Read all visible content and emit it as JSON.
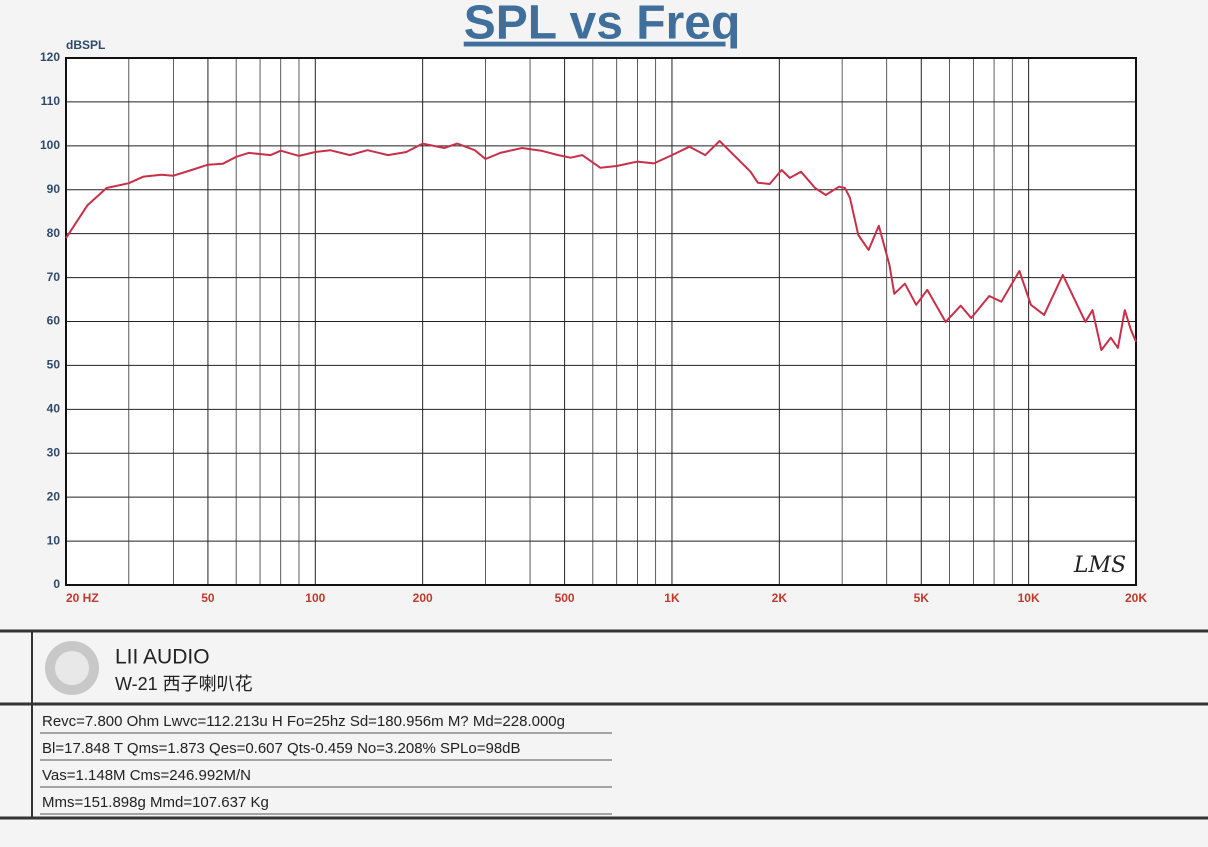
{
  "chart_data": {
    "type": "line",
    "title": "SPL vs Freq",
    "ylabel": "dBSPL",
    "annotation": "LMS",
    "xscale": "log",
    "grid": true,
    "xlim": [
      20,
      20000
    ],
    "ylim": [
      0,
      120
    ],
    "yticks": [
      0,
      10,
      20,
      30,
      40,
      50,
      60,
      70,
      80,
      90,
      100,
      110,
      120
    ],
    "xticks": [
      {
        "value": 20,
        "label": "20 HZ"
      },
      50,
      100,
      200,
      500,
      {
        "value": 1000,
        "label": "1K"
      },
      {
        "value": 2000,
        "label": "2K"
      },
      {
        "value": 5000,
        "label": "5K"
      },
      {
        "value": 10000,
        "label": "10K"
      },
      {
        "value": 20000,
        "label": "20K"
      }
    ],
    "xminorticks": [
      30,
      40,
      60,
      70,
      80,
      90,
      300,
      400,
      600,
      700,
      800,
      900,
      3000,
      4000,
      6000,
      7000,
      8000,
      9000
    ],
    "series": [
      {
        "color": "#c8304a",
        "x": [
          20,
          23,
          26,
          30,
          33,
          37,
          40,
          45,
          50,
          55,
          60,
          65,
          75,
          80,
          90,
          100,
          110,
          125,
          140,
          160,
          180,
          200,
          230,
          250,
          280,
          300,
          330,
          380,
          430,
          480,
          520,
          560,
          630,
          700,
          800,
          890,
          1000,
          1120,
          1240,
          1360,
          1660,
          1740,
          1880,
          2030,
          2140,
          2300,
          2520,
          2700,
          2940,
          3054,
          3155,
          3330,
          3560,
          3800,
          4070,
          4200,
          4500,
          4840,
          5200,
          5850,
          6450,
          6900,
          7750,
          8380,
          9420,
          10150,
          11050,
          12470,
          14430,
          15100,
          16000,
          17000,
          17800,
          18600,
          19350,
          20000
        ],
        "values": [
          79,
          86.5,
          90.4,
          91.5,
          93,
          93.4,
          93.2,
          94.5,
          95.7,
          95.9,
          97.5,
          98.4,
          97.9,
          98.9,
          97.7,
          98.6,
          99,
          97.9,
          99,
          97.9,
          98.6,
          100.5,
          99.5,
          100.5,
          99,
          97,
          98.4,
          99.5,
          98.9,
          97.9,
          97.3,
          97.9,
          95,
          95.4,
          96.4,
          96,
          97.9,
          99.8,
          97.9,
          101.1,
          94.1,
          91.6,
          91.3,
          94.5,
          92.7,
          94.1,
          90.4,
          88.8,
          90.7,
          90.4,
          88.2,
          79.7,
          76.3,
          81.8,
          72.9,
          66.3,
          68.6,
          63.8,
          67.2,
          59.9,
          63.6,
          60.8,
          65.8,
          64.5,
          71.5,
          63.8,
          61.5,
          70.6,
          59.9,
          62.6,
          53.5,
          56.3,
          54,
          62.6,
          58.1,
          55.4
        ]
      }
    ]
  },
  "footer": {
    "brand": "LII AUDIO",
    "model": "W-21 西子喇叭花",
    "params": [
      "Revc=7.800 Ohm Lwvc=112.213u H  Fo=25hz  Sd=180.956m M? Md=228.000g",
      "Bl=17.848 T Qms=1.873 Qes=0.607 Qts-0.459 No=3.208% SPLo=98dB",
      "Vas=1.148M Cms=246.992M/N",
      "Mms=151.898g Mmd=107.637 Kg"
    ]
  }
}
